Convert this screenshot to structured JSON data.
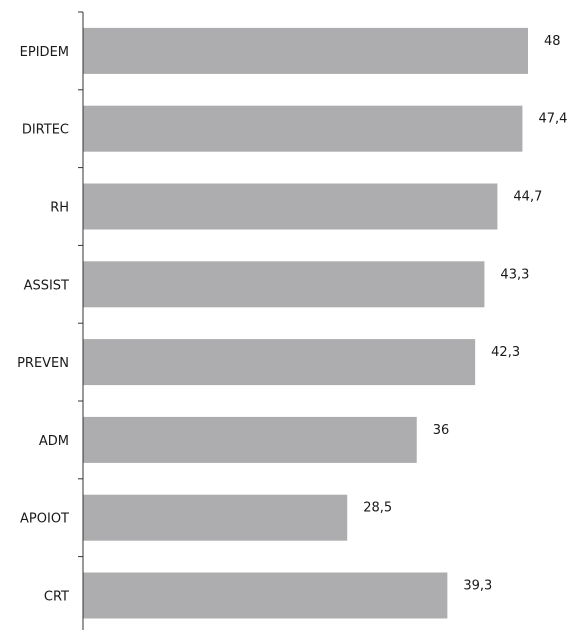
{
  "chart_data": {
    "type": "bar",
    "orientation": "horizontal",
    "categories": [
      "EPIDEM",
      "DIRTEC",
      "RH",
      "ASSIST",
      "PREVEN",
      "ADM",
      "APOIOT",
      "CRT"
    ],
    "values": [
      48,
      47.4,
      44.7,
      43.3,
      42.3,
      36,
      28.5,
      39.3
    ],
    "value_labels": [
      "48",
      "47,4",
      "44,7",
      "43,3",
      "42,3",
      "36",
      "28,5",
      "39,3"
    ],
    "xlim": [
      0,
      48
    ],
    "grid": false,
    "colors": {
      "bar": "#adadaf",
      "axis": "#333333",
      "text": "#1a1a1a"
    }
  }
}
